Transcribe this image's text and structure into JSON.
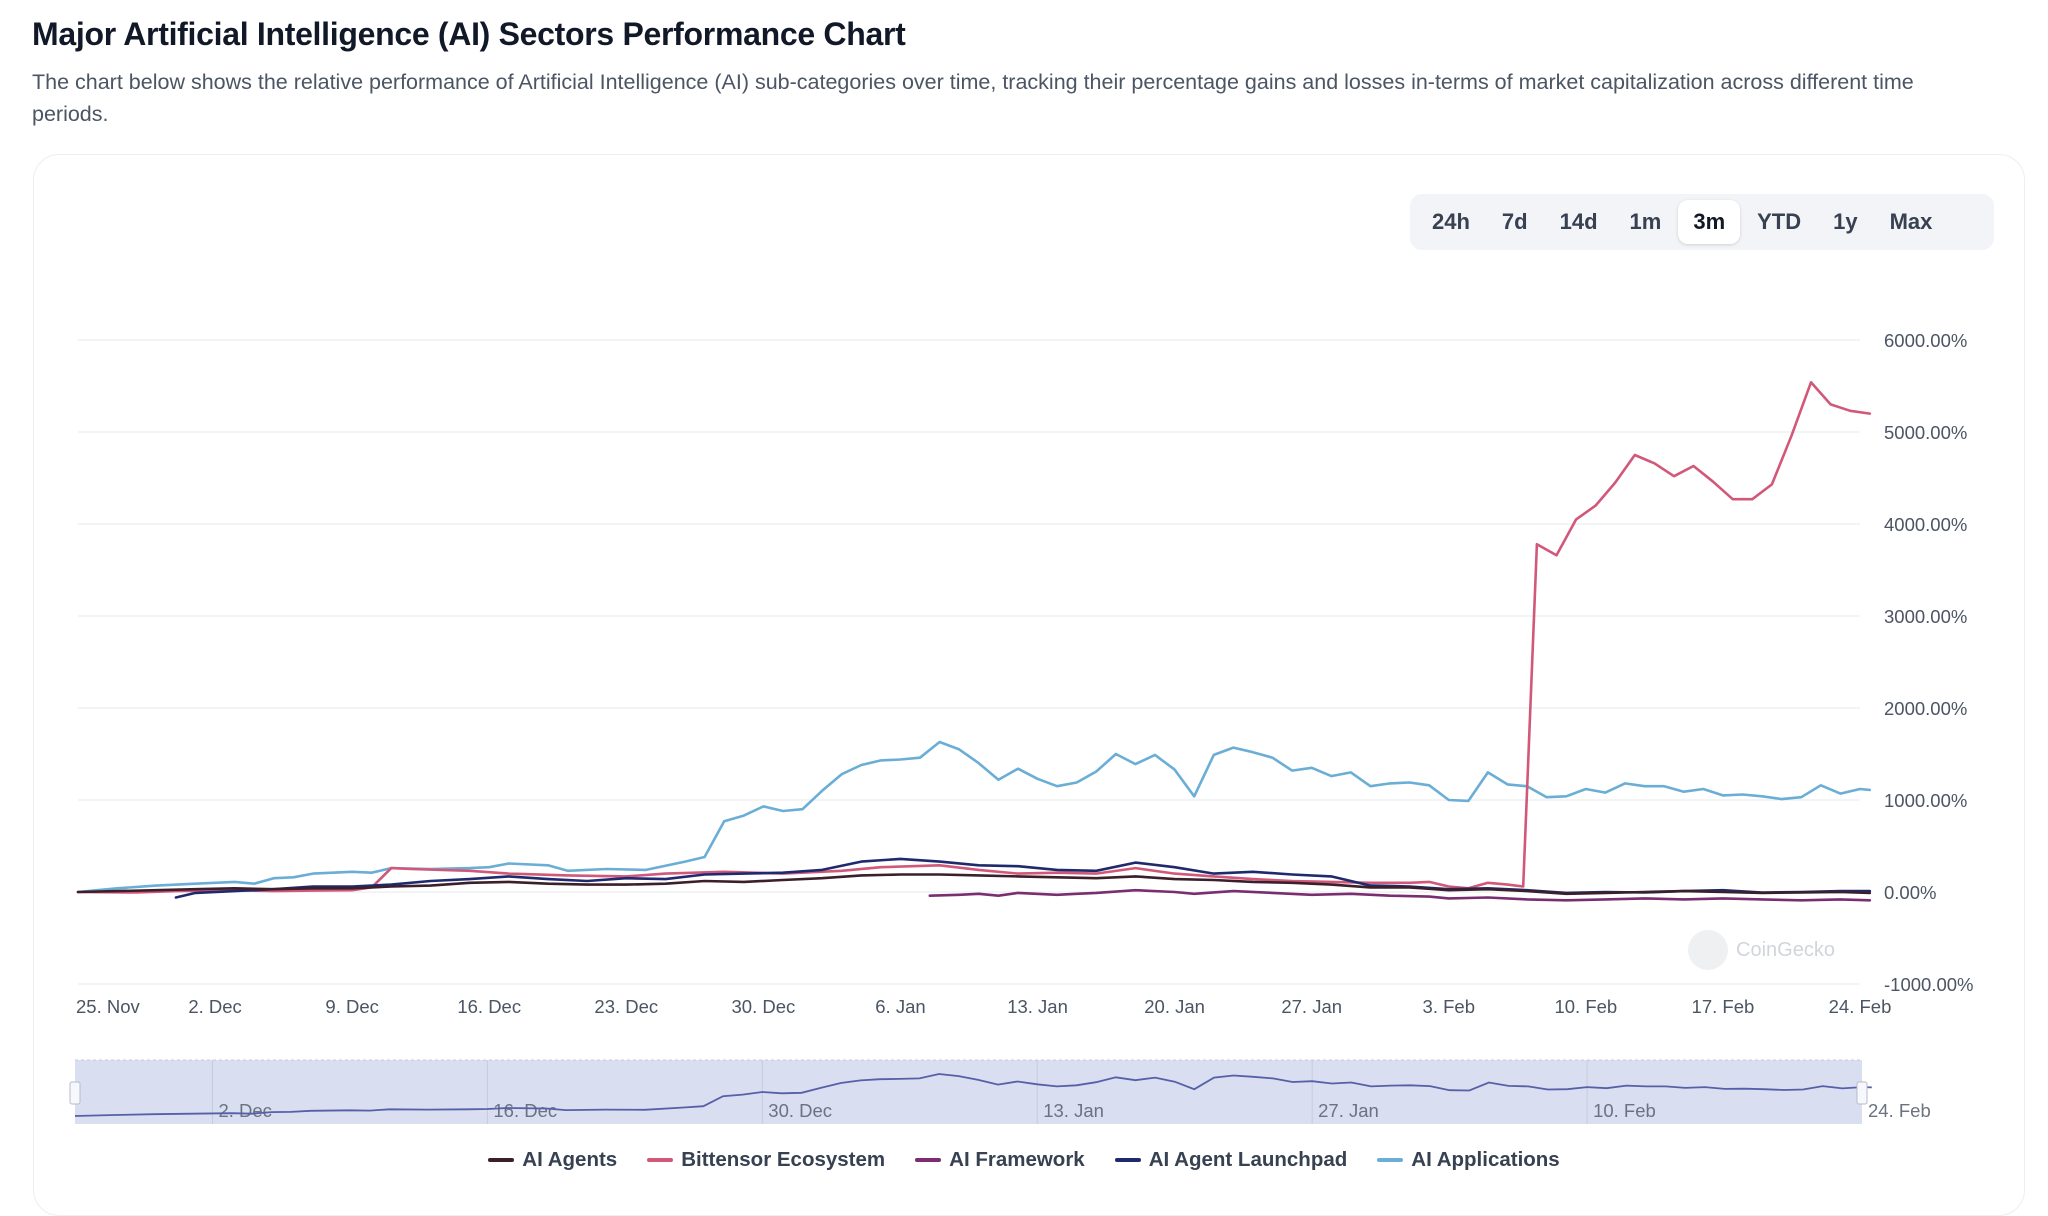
{
  "header": {
    "title": "Major Artificial Intelligence (AI) Sectors Performance Chart",
    "description": "The chart below shows the relative performance of Artificial Intelligence (AI) sub-categories over time, tracking their percentage gains and losses in-terms of market capitalization across different time periods."
  },
  "range_buttons": [
    {
      "label": "24h",
      "active": false
    },
    {
      "label": "7d",
      "active": false
    },
    {
      "label": "14d",
      "active": false
    },
    {
      "label": "1m",
      "active": false
    },
    {
      "label": "3m",
      "active": true
    },
    {
      "label": "YTD",
      "active": false
    },
    {
      "label": "1y",
      "active": false
    },
    {
      "label": "Max",
      "active": false
    }
  ],
  "watermark": "CoinGecko",
  "chart_data": {
    "type": "line",
    "title": "Major Artificial Intelligence (AI) Sectors Performance Chart",
    "xlabel": "",
    "ylabel": "",
    "x_unit": "days since 25 Nov",
    "x_range": [
      0,
      91
    ],
    "ylim": [
      -1000,
      6000
    ],
    "y_ticks": [
      6000,
      5000,
      4000,
      3000,
      2000,
      1000,
      0,
      -1000
    ],
    "y_tick_labels": [
      "6000.00%",
      "5000.00%",
      "4000.00%",
      "3000.00%",
      "2000.00%",
      "1000.00%",
      "0.00%",
      "-1000.00%"
    ],
    "x_ticks": [
      {
        "day": 0,
        "label": "25. Nov"
      },
      {
        "day": 7,
        "label": "2. Dec"
      },
      {
        "day": 14,
        "label": "9. Dec"
      },
      {
        "day": 21,
        "label": "16. Dec"
      },
      {
        "day": 28,
        "label": "23. Dec"
      },
      {
        "day": 35,
        "label": "30. Dec"
      },
      {
        "day": 42,
        "label": "6. Jan"
      },
      {
        "day": 49,
        "label": "13. Jan"
      },
      {
        "day": 56,
        "label": "20. Jan"
      },
      {
        "day": 63,
        "label": "27. Jan"
      },
      {
        "day": 70,
        "label": "3. Feb"
      },
      {
        "day": 77,
        "label": "10. Feb"
      },
      {
        "day": 84,
        "label": "17. Feb"
      },
      {
        "day": 91,
        "label": "24. Feb"
      }
    ],
    "navigator_ticks": [
      {
        "day": 7,
        "label": "2. Dec"
      },
      {
        "day": 21,
        "label": "16. Dec"
      },
      {
        "day": 35,
        "label": "30. Dec"
      },
      {
        "day": 49,
        "label": "13. Jan"
      },
      {
        "day": 63,
        "label": "27. Jan"
      },
      {
        "day": 77,
        "label": "10. Feb"
      },
      {
        "day": 91,
        "label": "24. Feb"
      }
    ],
    "grid": true,
    "legend_position": "bottom-center",
    "series": [
      {
        "name": "AI Applications",
        "color": "#6aaed6",
        "points": [
          [
            0,
            0
          ],
          [
            2,
            40
          ],
          [
            4,
            70
          ],
          [
            6,
            90
          ],
          [
            8,
            110
          ],
          [
            9,
            90
          ],
          [
            10,
            150
          ],
          [
            11,
            160
          ],
          [
            12,
            200
          ],
          [
            14,
            220
          ],
          [
            15,
            210
          ],
          [
            16,
            260
          ],
          [
            18,
            250
          ],
          [
            20,
            260
          ],
          [
            21,
            270
          ],
          [
            22,
            310
          ],
          [
            24,
            290
          ],
          [
            25,
            230
          ],
          [
            27,
            250
          ],
          [
            29,
            240
          ],
          [
            31,
            330
          ],
          [
            32,
            380
          ],
          [
            33,
            770
          ],
          [
            34,
            830
          ],
          [
            35,
            930
          ],
          [
            36,
            880
          ],
          [
            37,
            900
          ],
          [
            38,
            1100
          ],
          [
            39,
            1280
          ],
          [
            40,
            1380
          ],
          [
            41,
            1430
          ],
          [
            42,
            1440
          ],
          [
            43,
            1460
          ],
          [
            44,
            1630
          ],
          [
            45,
            1550
          ],
          [
            46,
            1400
          ],
          [
            47,
            1220
          ],
          [
            48,
            1340
          ],
          [
            49,
            1230
          ],
          [
            50,
            1150
          ],
          [
            51,
            1190
          ],
          [
            52,
            1310
          ],
          [
            53,
            1500
          ],
          [
            54,
            1390
          ],
          [
            55,
            1490
          ],
          [
            56,
            1330
          ],
          [
            57,
            1040
          ],
          [
            58,
            1490
          ],
          [
            59,
            1570
          ],
          [
            60,
            1520
          ],
          [
            61,
            1460
          ],
          [
            62,
            1320
          ],
          [
            63,
            1350
          ],
          [
            64,
            1260
          ],
          [
            65,
            1300
          ],
          [
            66,
            1150
          ],
          [
            67,
            1180
          ],
          [
            68,
            1190
          ],
          [
            69,
            1160
          ],
          [
            70,
            1000
          ],
          [
            71,
            990
          ],
          [
            72,
            1300
          ],
          [
            73,
            1170
          ],
          [
            74,
            1150
          ],
          [
            75,
            1030
          ],
          [
            76,
            1040
          ],
          [
            77,
            1120
          ],
          [
            78,
            1080
          ],
          [
            79,
            1180
          ],
          [
            80,
            1150
          ],
          [
            81,
            1150
          ],
          [
            82,
            1090
          ],
          [
            83,
            1120
          ],
          [
            84,
            1050
          ],
          [
            85,
            1060
          ],
          [
            86,
            1040
          ],
          [
            87,
            1010
          ],
          [
            88,
            1030
          ],
          [
            89,
            1160
          ],
          [
            90,
            1070
          ],
          [
            91,
            1120
          ],
          [
            91.5,
            1110
          ]
        ]
      },
      {
        "name": "Bittensor Ecosystem",
        "color": "#d2587a",
        "points": [
          [
            0,
            0
          ],
          [
            3,
            -5
          ],
          [
            5,
            10
          ],
          [
            8,
            20
          ],
          [
            10,
            10
          ],
          [
            12,
            15
          ],
          [
            14,
            20
          ],
          [
            15,
            50
          ],
          [
            16,
            260
          ],
          [
            17,
            250
          ],
          [
            20,
            230
          ],
          [
            22,
            200
          ],
          [
            25,
            180
          ],
          [
            28,
            170
          ],
          [
            30,
            200
          ],
          [
            33,
            220
          ],
          [
            36,
            200
          ],
          [
            39,
            230
          ],
          [
            41,
            270
          ],
          [
            44,
            290
          ],
          [
            46,
            240
          ],
          [
            48,
            200
          ],
          [
            50,
            210
          ],
          [
            52,
            200
          ],
          [
            54,
            260
          ],
          [
            56,
            200
          ],
          [
            58,
            170
          ],
          [
            60,
            140
          ],
          [
            62,
            120
          ],
          [
            64,
            110
          ],
          [
            66,
            100
          ],
          [
            68,
            100
          ],
          [
            69,
            110
          ],
          [
            70,
            60
          ],
          [
            71,
            40
          ],
          [
            72,
            100
          ],
          [
            73,
            80
          ],
          [
            73.8,
            60
          ],
          [
            74.5,
            3780
          ],
          [
            75.5,
            3660
          ],
          [
            76.5,
            4050
          ],
          [
            77.5,
            4200
          ],
          [
            78.5,
            4450
          ],
          [
            79.5,
            4750
          ],
          [
            80.5,
            4660
          ],
          [
            81.5,
            4520
          ],
          [
            82.5,
            4630
          ],
          [
            83.5,
            4460
          ],
          [
            84.5,
            4270
          ],
          [
            85.5,
            4270
          ],
          [
            86.5,
            4430
          ],
          [
            87.5,
            4960
          ],
          [
            88.5,
            5540
          ],
          [
            89.5,
            5300
          ],
          [
            90.5,
            5230
          ],
          [
            91.5,
            5200
          ]
        ]
      },
      {
        "name": "AI Agent Launchpad",
        "color": "#1f2a6e",
        "points": [
          [
            5,
            -60
          ],
          [
            6,
            -10
          ],
          [
            8,
            10
          ],
          [
            10,
            30
          ],
          [
            12,
            60
          ],
          [
            14,
            60
          ],
          [
            16,
            80
          ],
          [
            18,
            120
          ],
          [
            20,
            140
          ],
          [
            22,
            170
          ],
          [
            24,
            140
          ],
          [
            26,
            120
          ],
          [
            28,
            150
          ],
          [
            30,
            140
          ],
          [
            32,
            190
          ],
          [
            34,
            200
          ],
          [
            36,
            210
          ],
          [
            38,
            240
          ],
          [
            40,
            330
          ],
          [
            42,
            360
          ],
          [
            44,
            330
          ],
          [
            46,
            290
          ],
          [
            48,
            280
          ],
          [
            50,
            240
          ],
          [
            52,
            230
          ],
          [
            54,
            320
          ],
          [
            56,
            270
          ],
          [
            58,
            200
          ],
          [
            60,
            220
          ],
          [
            62,
            190
          ],
          [
            64,
            170
          ],
          [
            66,
            70
          ],
          [
            68,
            60
          ],
          [
            70,
            30
          ],
          [
            72,
            40
          ],
          [
            74,
            20
          ],
          [
            76,
            -10
          ],
          [
            78,
            0
          ],
          [
            80,
            -5
          ],
          [
            82,
            10
          ],
          [
            84,
            20
          ],
          [
            86,
            -5
          ],
          [
            88,
            0
          ],
          [
            90,
            10
          ],
          [
            91.5,
            10
          ]
        ]
      },
      {
        "name": "AI Agents",
        "color": "#3b1f2b",
        "points": [
          [
            0,
            0
          ],
          [
            2,
            10
          ],
          [
            4,
            20
          ],
          [
            6,
            30
          ],
          [
            8,
            40
          ],
          [
            10,
            30
          ],
          [
            12,
            40
          ],
          [
            14,
            40
          ],
          [
            16,
            60
          ],
          [
            18,
            70
          ],
          [
            20,
            100
          ],
          [
            22,
            110
          ],
          [
            24,
            90
          ],
          [
            26,
            80
          ],
          [
            28,
            80
          ],
          [
            30,
            90
          ],
          [
            32,
            120
          ],
          [
            34,
            110
          ],
          [
            36,
            130
          ],
          [
            38,
            150
          ],
          [
            40,
            180
          ],
          [
            42,
            190
          ],
          [
            44,
            190
          ],
          [
            46,
            180
          ],
          [
            48,
            170
          ],
          [
            50,
            160
          ],
          [
            52,
            150
          ],
          [
            54,
            170
          ],
          [
            56,
            140
          ],
          [
            58,
            130
          ],
          [
            60,
            110
          ],
          [
            62,
            100
          ],
          [
            64,
            80
          ],
          [
            66,
            50
          ],
          [
            68,
            50
          ],
          [
            70,
            20
          ],
          [
            72,
            30
          ],
          [
            74,
            10
          ],
          [
            76,
            -20
          ],
          [
            78,
            -10
          ],
          [
            80,
            0
          ],
          [
            82,
            10
          ],
          [
            84,
            0
          ],
          [
            86,
            -10
          ],
          [
            88,
            -5
          ],
          [
            90,
            0
          ],
          [
            91.5,
            -10
          ]
        ]
      },
      {
        "name": "AI Framework",
        "color": "#7a2d6f",
        "points": [
          [
            43.5,
            -40
          ],
          [
            45,
            -30
          ],
          [
            46,
            -20
          ],
          [
            47,
            -40
          ],
          [
            48,
            -10
          ],
          [
            50,
            -30
          ],
          [
            51,
            -20
          ],
          [
            52,
            -10
          ],
          [
            54,
            20
          ],
          [
            56,
            0
          ],
          [
            57,
            -20
          ],
          [
            59,
            10
          ],
          [
            61,
            -10
          ],
          [
            63,
            -30
          ],
          [
            65,
            -20
          ],
          [
            67,
            -40
          ],
          [
            69,
            -50
          ],
          [
            70,
            -70
          ],
          [
            72,
            -60
          ],
          [
            74,
            -80
          ],
          [
            76,
            -90
          ],
          [
            78,
            -80
          ],
          [
            80,
            -70
          ],
          [
            82,
            -80
          ],
          [
            84,
            -70
          ],
          [
            86,
            -80
          ],
          [
            88,
            -90
          ],
          [
            90,
            -80
          ],
          [
            91.5,
            -90
          ]
        ]
      }
    ]
  }
}
